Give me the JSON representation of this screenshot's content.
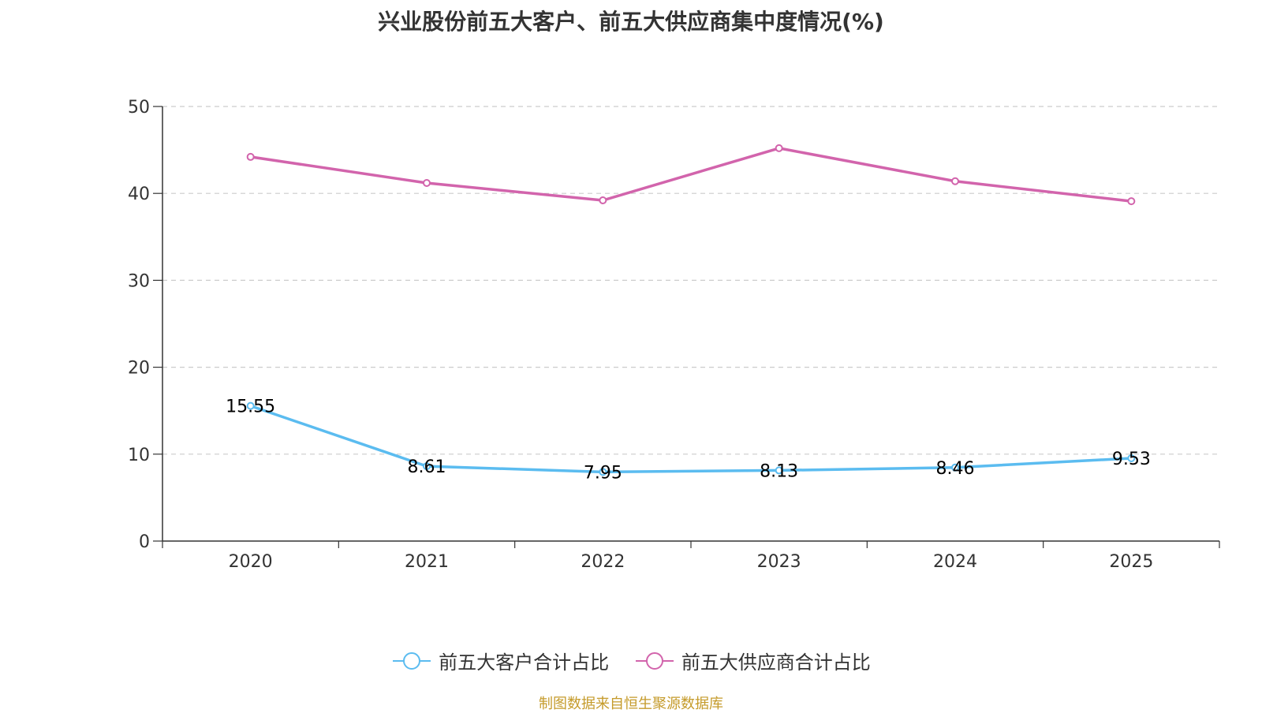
{
  "chart_data": {
    "type": "line",
    "title": "兴业股份前五大客户、前五大供应商集中度情况(%)",
    "categories": [
      "2020",
      "2021",
      "2022",
      "2023",
      "2024",
      "2025"
    ],
    "ylim": [
      0,
      50
    ],
    "yticks": [
      "0",
      "10",
      "20",
      "30",
      "40",
      "50"
    ],
    "grid": true,
    "legend_position": "bottom",
    "series": [
      {
        "name": "前五大客户合计占比",
        "color": "#5bbcf0",
        "values": [
          15.55,
          8.61,
          7.95,
          8.13,
          8.46,
          9.53
        ],
        "labels": [
          "15.55",
          "8.61",
          "7.95",
          "8.13",
          "8.46",
          "9.53"
        ],
        "show_labels": true
      },
      {
        "name": "前五大供应商合计占比",
        "color": "#d264ac",
        "values": [
          44.2,
          41.2,
          39.2,
          45.2,
          41.4,
          39.1
        ],
        "show_labels": false
      }
    ]
  },
  "source_note": "制图数据来自恒生聚源数据库"
}
